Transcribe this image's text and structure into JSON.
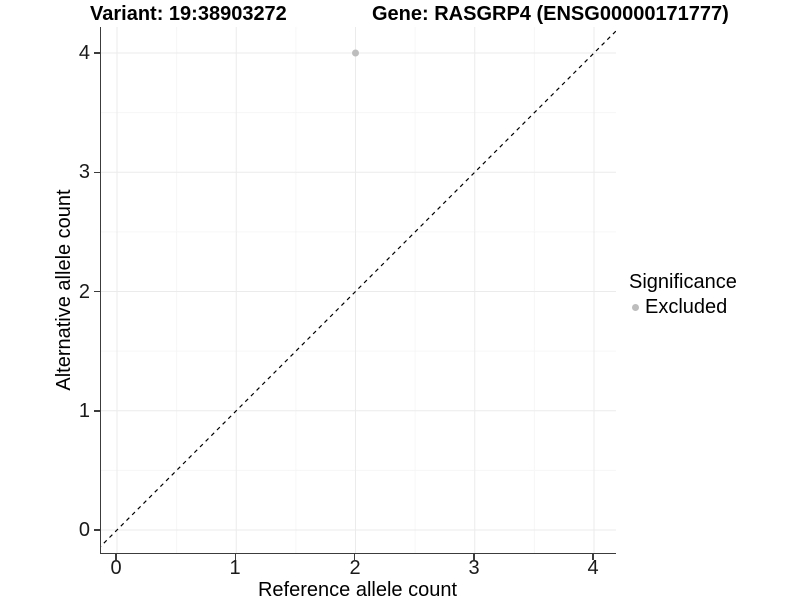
{
  "chart_data": {
    "type": "scatter",
    "title_left": "Variant: 19:38903272",
    "title_right": "Gene: RASGRP4 (ENSG00000171777)",
    "xlabel": "Reference allele count",
    "ylabel": "Alternative allele count",
    "xticks": [
      0,
      1,
      2,
      3,
      4
    ],
    "yticks": [
      0,
      1,
      2,
      3,
      4
    ],
    "xlim": [
      -0.13,
      4.19
    ],
    "ylim": [
      -0.19,
      4.22
    ],
    "grid": "major and minor gridlines on white background, legend right",
    "points": [
      {
        "x": 2,
        "y": 4,
        "series": "Excluded"
      }
    ],
    "reference_line": {
      "style": "dashed",
      "slope": 1,
      "intercept": 0,
      "description": "y = x identity line"
    },
    "legend": {
      "title": "Significance",
      "position": "right",
      "items": [
        {
          "label": "Excluded",
          "color": "#bdbdbd",
          "marker": "circle"
        }
      ]
    },
    "colors": {
      "point": "#bdbdbd",
      "grid_major": "#ebebeb",
      "grid_minor": "#f6f6f6",
      "axis_line": "#3c3c3c",
      "dashed_line": "#000000"
    }
  }
}
